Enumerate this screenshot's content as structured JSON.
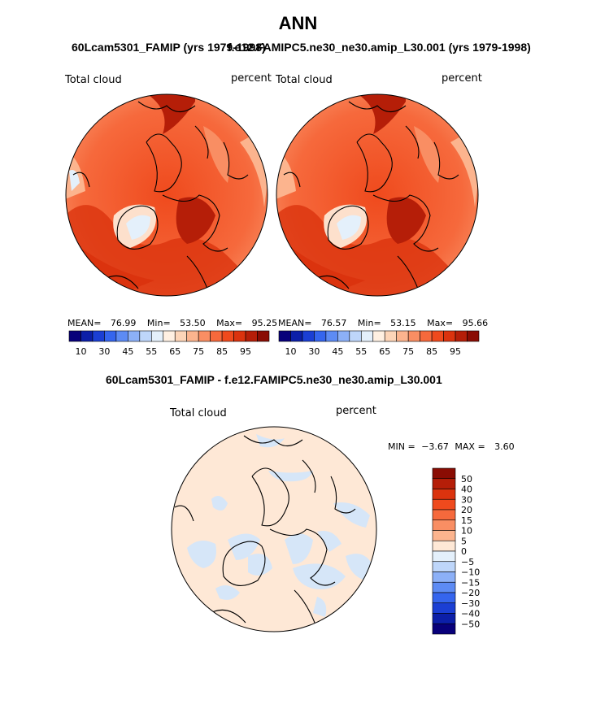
{
  "page_title": "ANN",
  "panel_left": {
    "subtitle": "60Lcam5301_FAMIP (yrs 1979-1998)",
    "var_label": "Total cloud",
    "units": "percent",
    "stats": {
      "mean_label": "MEAN=",
      "mean": "76.99",
      "min_label": "Min=",
      "min": "53.50",
      "max_label": "Max=",
      "max": "95.25"
    }
  },
  "panel_right": {
    "subtitle": "f.e12.FAMIPC5.ne30_ne30.amip_L30.001 (yrs 1979-1998)",
    "var_label": "Total cloud",
    "units": "percent",
    "stats": {
      "mean_label": "MEAN=",
      "mean": "76.57",
      "min_label": "Min=",
      "min": "53.15",
      "max_label": "Max=",
      "max": "95.66"
    }
  },
  "colorbar_top": {
    "colors": [
      "#08007a",
      "#0c1fa8",
      "#1b3fd4",
      "#3565ee",
      "#5d8bf4",
      "#8cb0f7",
      "#bed6fa",
      "#e4f0fb",
      "#fff0e2",
      "#fdd5b8",
      "#fcb48e",
      "#f98e63",
      "#f6693c",
      "#ef4a1d",
      "#db330e",
      "#b51e08",
      "#8a0c03"
    ],
    "ticks": [
      "10",
      "30",
      "45",
      "55",
      "65",
      "75",
      "85",
      "95"
    ]
  },
  "panel_diff": {
    "subtitle": "60Lcam5301_FAMIP - f.e12.FAMIPC5.ne30_ne30.amip_L30.001",
    "var_label": "Total cloud",
    "units": "percent",
    "minmax": {
      "min_label": "MIN =",
      "min": "−3.67",
      "max_label": "MAX =",
      "max": "3.60"
    }
  },
  "colorbar_diff": {
    "colors": [
      "#8a0c03",
      "#b51e08",
      "#db330e",
      "#ef4a1d",
      "#f6693c",
      "#f98e63",
      "#fcb48e",
      "#fee8d6",
      "#e4f0fb",
      "#bed6fa",
      "#8cb0f7",
      "#5d8bf4",
      "#3565ee",
      "#1b3fd4",
      "#0c1fa8",
      "#08007a"
    ],
    "ticks": [
      "50",
      "40",
      "30",
      "20",
      "15",
      "10",
      "5",
      "0",
      "−5",
      "−10",
      "−15",
      "−20",
      "−30",
      "−40",
      "−50"
    ]
  }
}
